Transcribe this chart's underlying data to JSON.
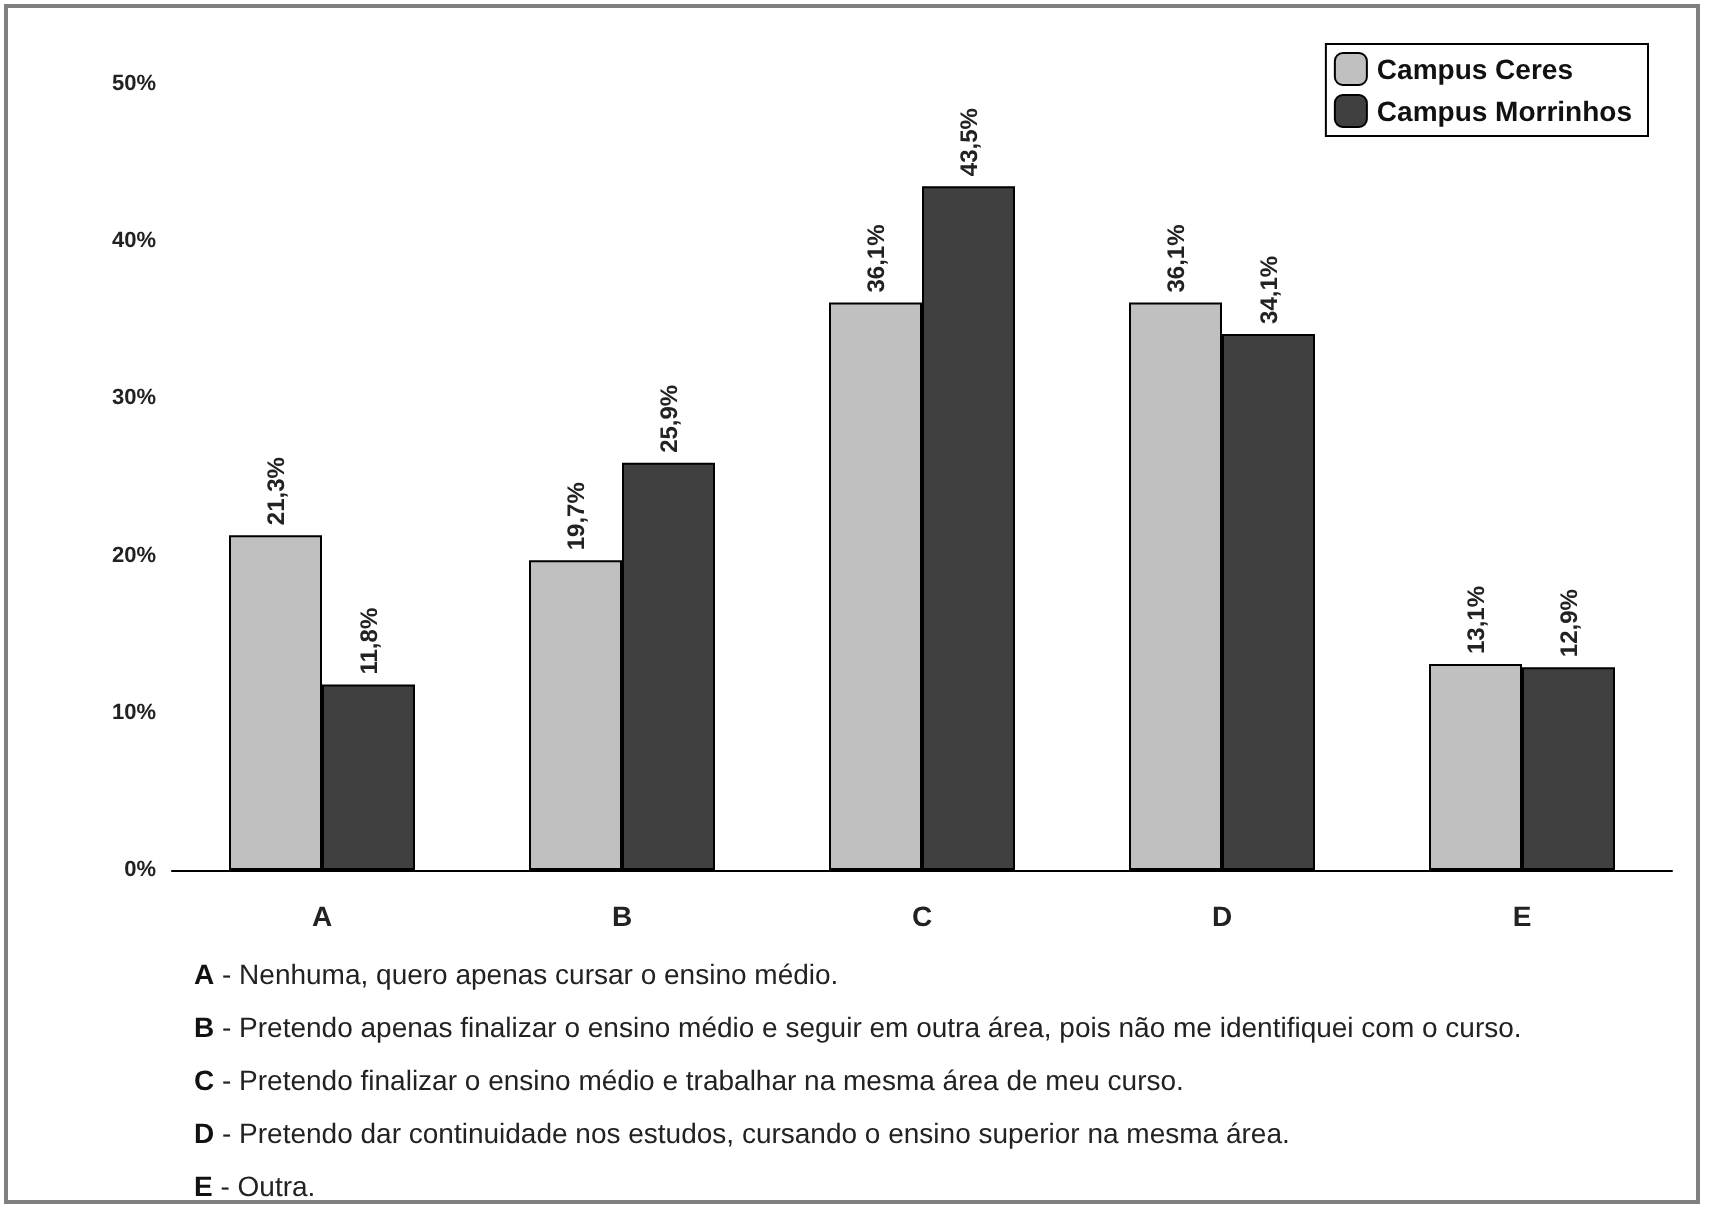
{
  "chart_data": {
    "type": "bar",
    "categories": [
      "A",
      "B",
      "C",
      "D",
      "E"
    ],
    "series": [
      {
        "name": "Campus Ceres",
        "color": "#c0c0c0",
        "values": [
          21.3,
          19.7,
          36.1,
          36.1,
          13.1
        ],
        "value_labels": [
          "21,3%",
          "19,7%",
          "36,1%",
          "36,1%",
          "13,1%"
        ]
      },
      {
        "name": "Campus Morrinhos",
        "color": "#404040",
        "values": [
          11.8,
          25.9,
          43.5,
          34.1,
          12.9
        ],
        "value_labels": [
          "11,8%",
          "25,9%",
          "43,5%",
          "34,1%",
          "12,9%"
        ]
      }
    ],
    "ylim": [
      0,
      50
    ],
    "yticks": [
      {
        "value": 0,
        "label": "0%"
      },
      {
        "value": 10,
        "label": "10%"
      },
      {
        "value": 20,
        "label": "20%"
      },
      {
        "value": 30,
        "label": "30%"
      },
      {
        "value": 40,
        "label": "40%"
      },
      {
        "value": 50,
        "label": "50%"
      }
    ],
    "grid": false,
    "legend": "top right",
    "annotations": [
      "A - Nenhuma, quero apenas cursar o ensino médio.",
      "B - Pretendo apenas finalizar o ensino médio e seguir em outra área, pois não me identifiquei com o curso.",
      "C - Pretendo finalizar o ensino médio e trabalhar na mesma área de meu curso.",
      "D - Pretendo dar continuidade nos estudos, cursando o ensino superior na mesma área.",
      "E - Outra."
    ]
  }
}
